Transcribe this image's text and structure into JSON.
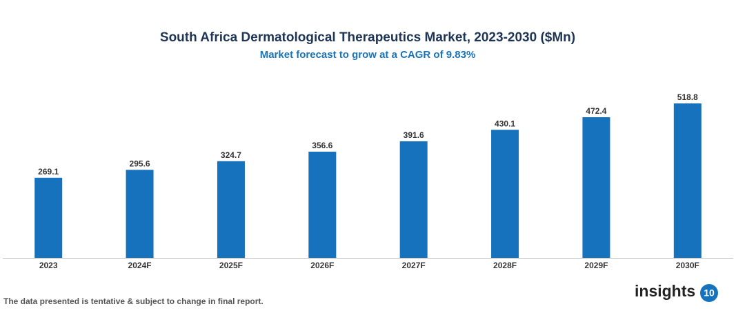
{
  "chart_data": {
    "type": "bar",
    "title": "South Africa Dermatological Therapeutics Market, 2023-2030 ($Mn)",
    "subtitle": "Market forecast to grow at a CAGR of 9.83%",
    "categories": [
      "2023",
      "2024F",
      "2025F",
      "2026F",
      "2027F",
      "2028F",
      "2029F",
      "2030F"
    ],
    "values": [
      269.1,
      295.6,
      324.7,
      356.6,
      391.6,
      430.1,
      472.4,
      518.8
    ],
    "color": "#1672bd",
    "ylim": [
      0,
      518.8
    ],
    "grid": false
  },
  "footnote": "The data presented is tentative & subject to change in final report.",
  "brand": {
    "name": "insights",
    "number": "10"
  }
}
